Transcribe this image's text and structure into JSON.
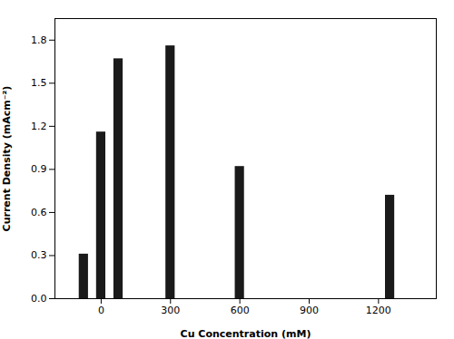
{
  "chart_data": {
    "type": "bar",
    "x": [
      -75,
      0,
      75,
      300,
      600,
      1250
    ],
    "values": [
      0.31,
      1.16,
      1.67,
      1.76,
      0.92,
      0.72
    ],
    "color": "#1a1a1a",
    "xlabel": "Cu Concentration (mM)",
    "ylabel": "Current Density (mAcm⁻²)",
    "xlim": [
      -200,
      1450
    ],
    "ylim": [
      0.0,
      1.95
    ],
    "xticks": [
      0,
      300,
      600,
      900,
      1200
    ],
    "yticks": [
      {
        "value": 0.0,
        "label": "0.0"
      },
      0.3,
      0.6,
      0.9,
      1.2,
      1.5,
      1.8
    ],
    "grid": false
  }
}
